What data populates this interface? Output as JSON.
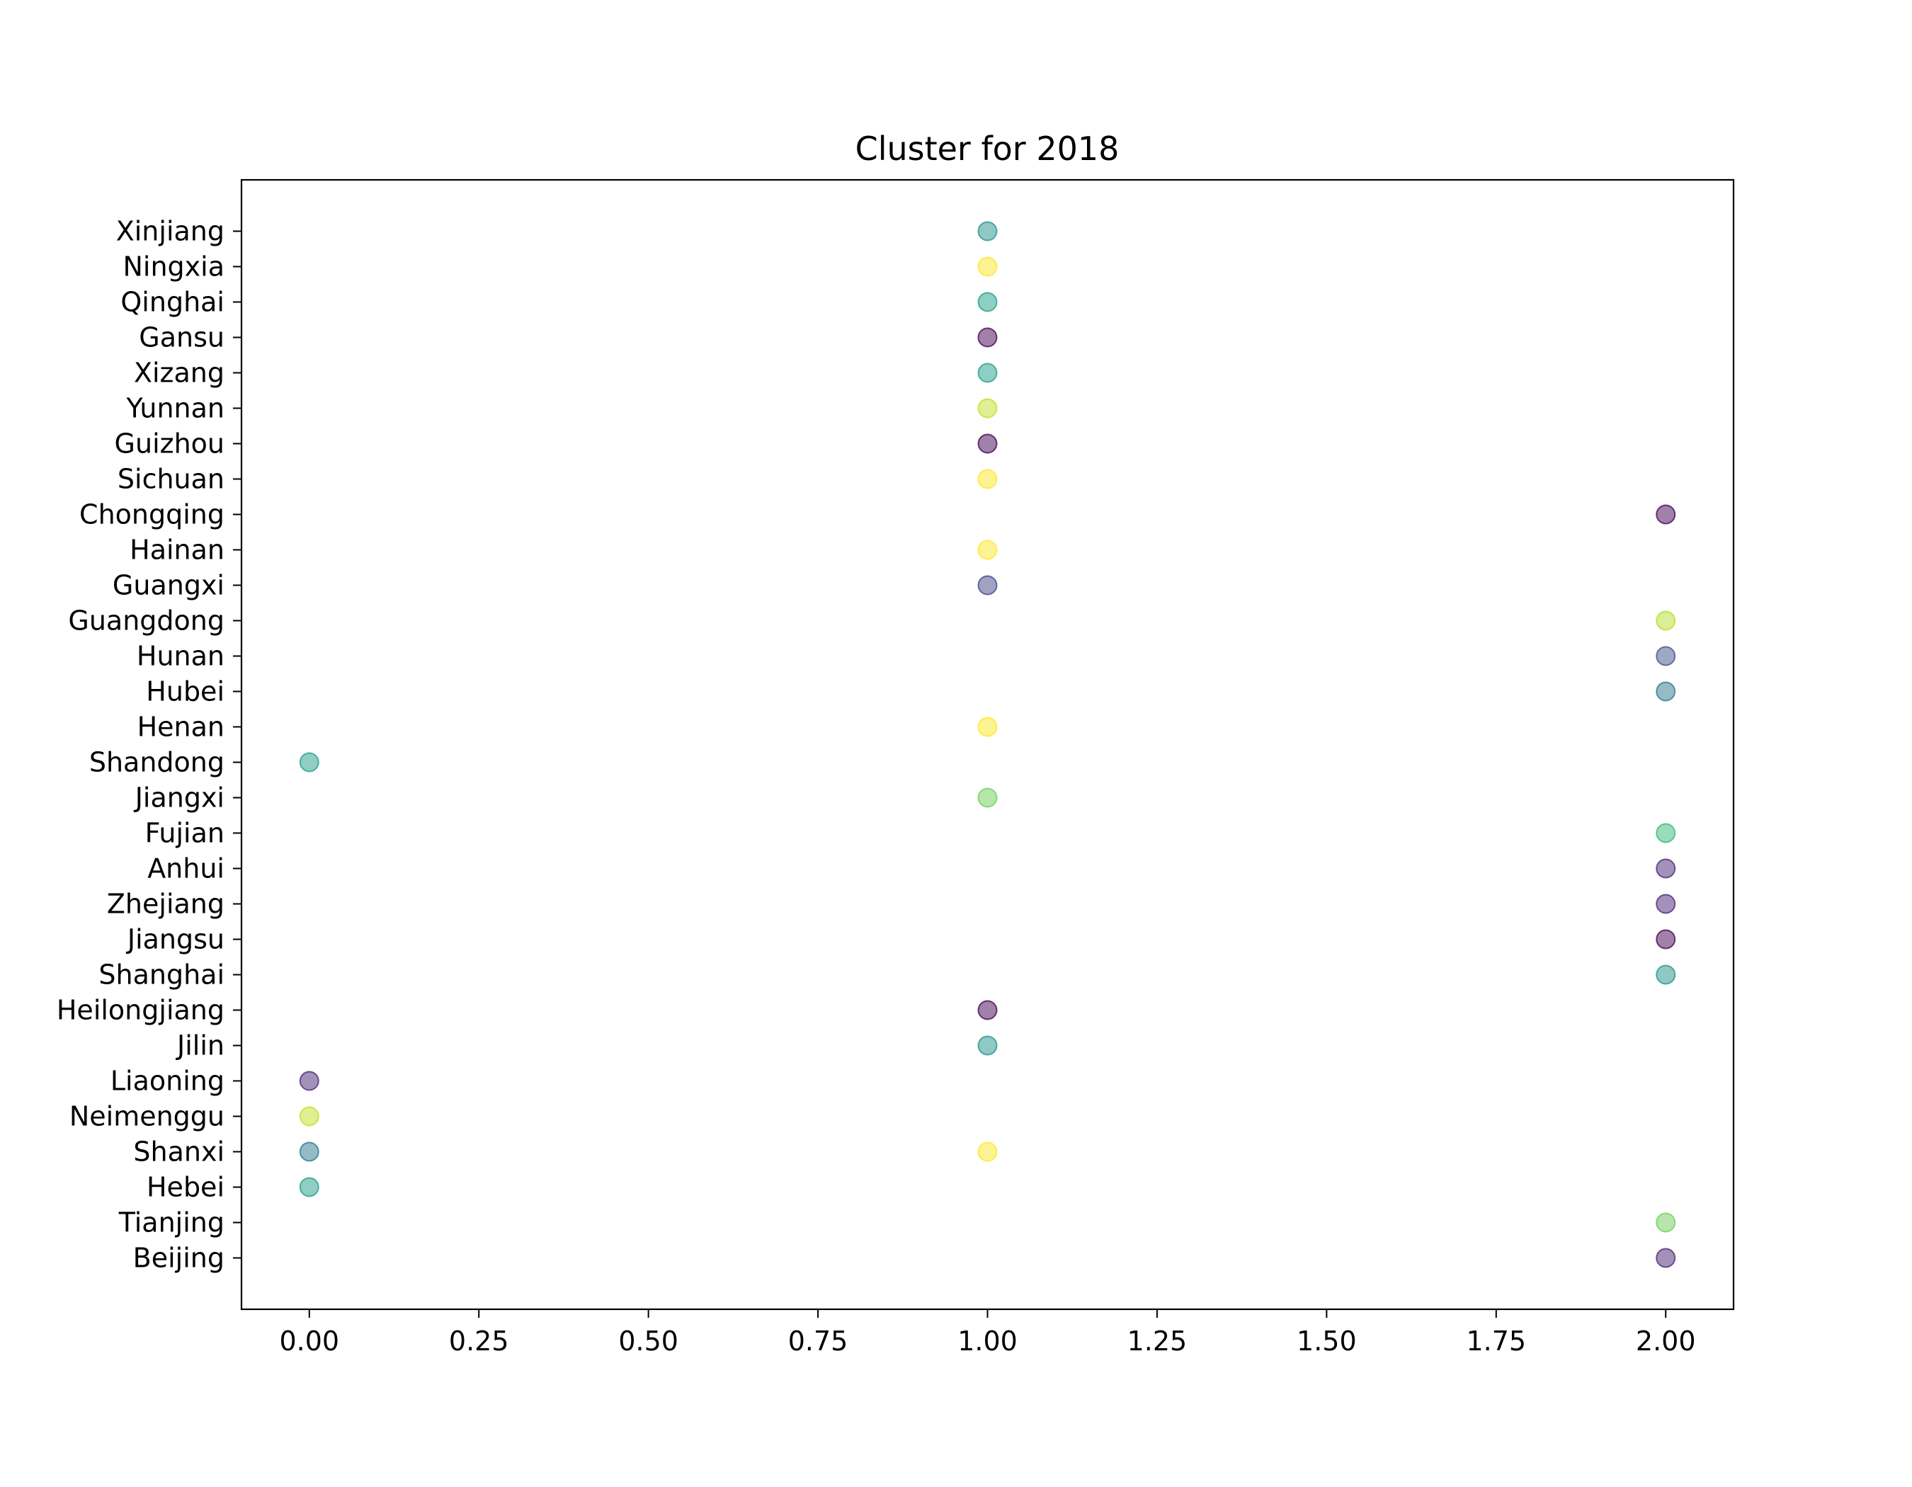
{
  "chart_data": {
    "type": "scatter",
    "title": "Cluster for 2018",
    "xlabel": "",
    "ylabel": "",
    "xlim": [
      -0.1,
      2.1
    ],
    "x_ticks": [
      0.0,
      0.25,
      0.5,
      0.75,
      1.0,
      1.25,
      1.5,
      1.75,
      2.0
    ],
    "x_tick_labels": [
      "0.00",
      "0.25",
      "0.50",
      "0.75",
      "1.00",
      "1.25",
      "1.50",
      "1.75",
      "2.00"
    ],
    "categories": [
      "Beijing",
      "Tianjing",
      "Hebei",
      "Shanxi",
      "Neimenggu",
      "Liaoning",
      "Jilin",
      "Heilongjiang",
      "Shanghai",
      "Jiangsu",
      "Zhejiang",
      "Anhui",
      "Fujian",
      "Jiangxi",
      "Shandong",
      "Henan",
      "Hubei",
      "Hunan",
      "Guangdong",
      "Guangxi",
      "Hainan",
      "Chongqing",
      "Sichuan",
      "Guizhou",
      "Yunnan",
      "Xizang",
      "Gansu",
      "Qinghai",
      "Ningxia",
      "Xinjiang"
    ],
    "grid": false,
    "legend": false,
    "points": [
      {
        "y": "Beijing",
        "x": 2,
        "color": "#482475"
      },
      {
        "y": "Tianjing",
        "x": 2,
        "color": "#6ece58"
      },
      {
        "y": "Hebei",
        "x": 0,
        "color": "#1f9e89"
      },
      {
        "y": "Shanxi",
        "x": 0,
        "color": "#2a788e"
      },
      {
        "y": "Shanxi",
        "x": 1,
        "color": "#fde725"
      },
      {
        "y": "Neimenggu",
        "x": 0,
        "color": "#c2df23"
      },
      {
        "y": "Liaoning",
        "x": 0,
        "color": "#482475"
      },
      {
        "y": "Jilin",
        "x": 1,
        "color": "#21918c"
      },
      {
        "y": "Heilongjiang",
        "x": 1,
        "color": "#440154"
      },
      {
        "y": "Shanghai",
        "x": 2,
        "color": "#21918c"
      },
      {
        "y": "Jiangsu",
        "x": 2,
        "color": "#440154"
      },
      {
        "y": "Zhejiang",
        "x": 2,
        "color": "#482475"
      },
      {
        "y": "Anhui",
        "x": 2,
        "color": "#482475"
      },
      {
        "y": "Fujian",
        "x": 2,
        "color": "#35b779"
      },
      {
        "y": "Jiangxi",
        "x": 1,
        "color": "#6ece58"
      },
      {
        "y": "Shandong",
        "x": 0,
        "color": "#1f9e89"
      },
      {
        "y": "Henan",
        "x": 1,
        "color": "#fde725"
      },
      {
        "y": "Hubei",
        "x": 2,
        "color": "#2a788e"
      },
      {
        "y": "Hunan",
        "x": 2,
        "color": "#3b528b"
      },
      {
        "y": "Guangdong",
        "x": 2,
        "color": "#b5de2b"
      },
      {
        "y": "Guangxi",
        "x": 1,
        "color": "#414487"
      },
      {
        "y": "Hainan",
        "x": 1,
        "color": "#fde725"
      },
      {
        "y": "Chongqing",
        "x": 2,
        "color": "#440154"
      },
      {
        "y": "Sichuan",
        "x": 1,
        "color": "#fde725"
      },
      {
        "y": "Guizhou",
        "x": 1,
        "color": "#440154"
      },
      {
        "y": "Yunnan",
        "x": 1,
        "color": "#c2df23"
      },
      {
        "y": "Xizang",
        "x": 1,
        "color": "#1f9e89"
      },
      {
        "y": "Gansu",
        "x": 1,
        "color": "#440154"
      },
      {
        "y": "Qinghai",
        "x": 1,
        "color": "#1f9e89"
      },
      {
        "y": "Ningxia",
        "x": 1,
        "color": "#fde725"
      },
      {
        "y": "Xinjiang",
        "x": 1,
        "color": "#21918c"
      }
    ],
    "marker_alpha": 0.5
  }
}
